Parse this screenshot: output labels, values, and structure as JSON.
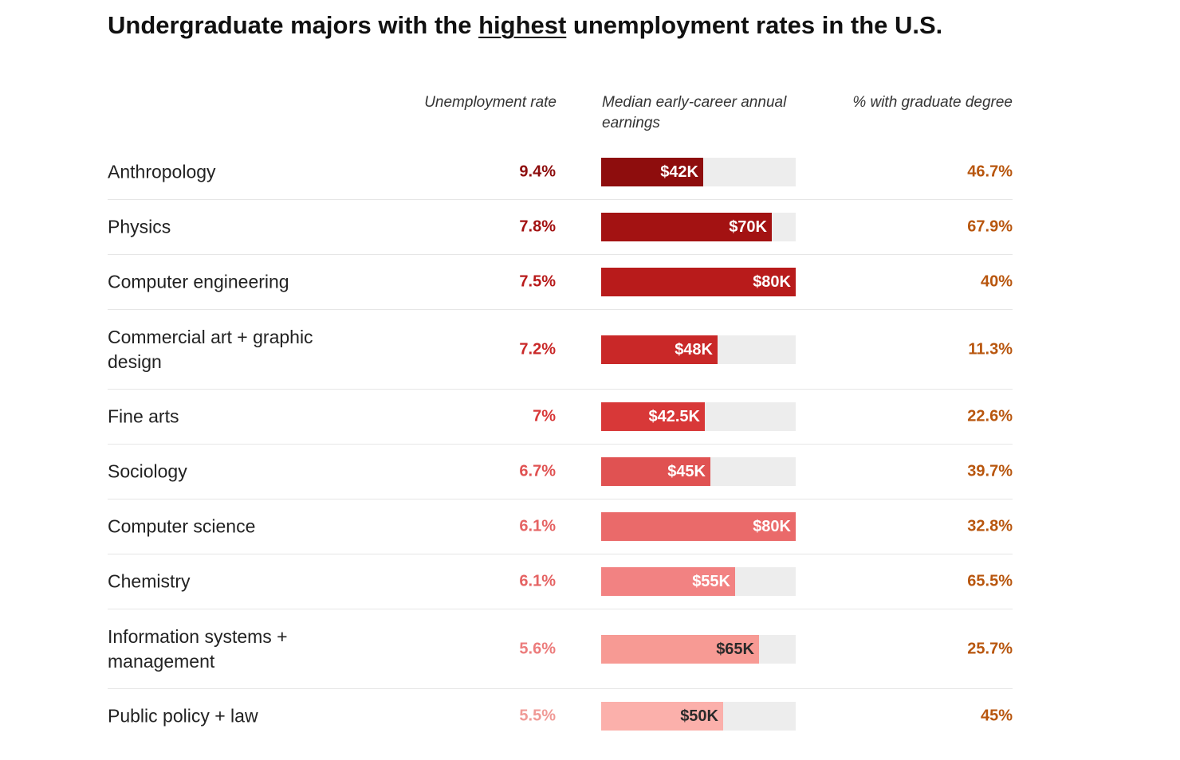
{
  "chart_data": {
    "type": "table",
    "title_parts": [
      "Undergraduate majors with the ",
      "highest",
      " unemployment rates in the U.S."
    ],
    "columns": {
      "unemployment": "Unemployment rate",
      "earnings": "Median early-career annual earnings",
      "grad_degree": "% with graduate degree"
    },
    "earnings_max": 80,
    "rows": [
      {
        "major": "Anthropology",
        "unemployment": "9.4%",
        "earnings": 42,
        "earnings_label": "$42K",
        "grad_degree": "46.7%",
        "color": "#8e0d0d",
        "rate_color": "#8e0d0d",
        "label_color": "#ffffff"
      },
      {
        "major": "Physics",
        "unemployment": "7.8%",
        "earnings": 70,
        "earnings_label": "$70K",
        "grad_degree": "67.9%",
        "color": "#a31212",
        "rate_color": "#a31212",
        "label_color": "#ffffff"
      },
      {
        "major": "Computer engineering",
        "unemployment": "7.5%",
        "earnings": 80,
        "earnings_label": "$80K",
        "grad_degree": "40%",
        "color": "#b81b1b",
        "rate_color": "#b81b1b",
        "label_color": "#ffffff"
      },
      {
        "major": "Commercial art + graphic design",
        "unemployment": "7.2%",
        "earnings": 48,
        "earnings_label": "$48K",
        "grad_degree": "11.3%",
        "color": "#c92828",
        "rate_color": "#c92828",
        "label_color": "#ffffff"
      },
      {
        "major": "Fine arts",
        "unemployment": "7%",
        "earnings": 42.5,
        "earnings_label": "$42.5K",
        "grad_degree": "22.6%",
        "color": "#d83838",
        "rate_color": "#d83838",
        "label_color": "#ffffff"
      },
      {
        "major": "Sociology",
        "unemployment": "6.7%",
        "earnings": 45,
        "earnings_label": "$45K",
        "grad_degree": "39.7%",
        "color": "#e05252",
        "rate_color": "#e05252",
        "label_color": "#ffffff"
      },
      {
        "major": "Computer science",
        "unemployment": "6.1%",
        "earnings": 80,
        "earnings_label": "$80K",
        "grad_degree": "32.8%",
        "color": "#ea6a6a",
        "rate_color": "#e56363",
        "label_color": "#ffffff"
      },
      {
        "major": "Chemistry",
        "unemployment": "6.1%",
        "earnings": 55,
        "earnings_label": "$55K",
        "grad_degree": "65.5%",
        "color": "#f28282",
        "rate_color": "#e56363",
        "label_color": "#ffffff"
      },
      {
        "major": "Information systems + management",
        "unemployment": "5.6%",
        "earnings": 65,
        "earnings_label": "$65K",
        "grad_degree": "25.7%",
        "color": "#f79a94",
        "rate_color": "#ec7c7c",
        "label_color": "#2a2a2a"
      },
      {
        "major": "Public policy + law",
        "unemployment": "5.5%",
        "earnings": 50,
        "earnings_label": "$50K",
        "grad_degree": "45%",
        "color": "#fbb0ab",
        "rate_color": "#f09a96",
        "label_color": "#2a2a2a"
      }
    ]
  }
}
